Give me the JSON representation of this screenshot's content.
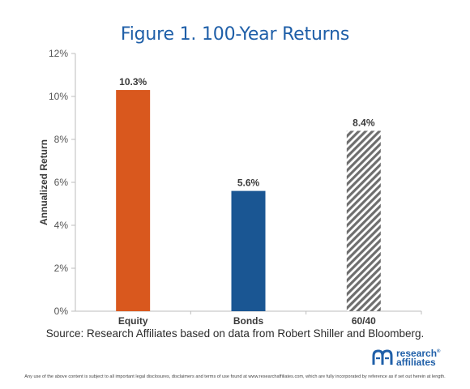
{
  "colors": {
    "title": "#1f5fa8",
    "equity": "#d9581e",
    "bonds": "#1a5693",
    "mix": "#7f7f7f",
    "axis": "#bdbdbd",
    "text": "#3a3a3a"
  },
  "chart_data": {
    "type": "bar",
    "title": "Figure 1. 100-Year Returns",
    "xlabel": "",
    "ylabel": "Annualized Return",
    "categories": [
      "Equity",
      "Bonds",
      "60/40"
    ],
    "values": [
      10.3,
      5.6,
      8.4
    ],
    "value_labels": [
      "10.3%",
      "5.6%",
      "8.4%"
    ],
    "bar_styles": [
      "solid-orange",
      "solid-blue",
      "hatched-gray"
    ],
    "ylim": [
      0,
      12
    ],
    "yticks": [
      0,
      2,
      4,
      6,
      8,
      10,
      12
    ],
    "ytick_labels": [
      "0%",
      "2%",
      "4%",
      "6%",
      "8%",
      "10%",
      "12%"
    ],
    "grid": false,
    "legend": "none"
  },
  "source": "Source: Research Affiliates based on data from Robert Shiller and Bloomberg.",
  "logo": {
    "line1": "research",
    "line2": "affiliates",
    "mark": "®"
  },
  "disclaimer": "Any use of the above content is subject to all important legal disclosures, disclaimers and terms of use found at www.researchaffiliates.com, which are fully incorporated by reference as if set out herein at length."
}
